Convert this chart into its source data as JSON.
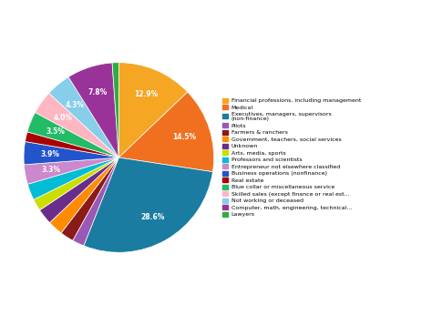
{
  "legend_labels": [
    "Financial professions, including management",
    "Medical",
    "Executives, managers, supervisors\n(non-finance)",
    "Pilots",
    "Farmers & ranchers",
    "Government, teachers, social services",
    "Unknown",
    "Arts, media, sports",
    "Professors and scientists",
    "Entrepreneur not elsewhere classified",
    "Business operations (nonfinance)",
    "Real estate",
    "Blue collar or miscellaneous service",
    "Skilled sales (except finance or real est...",
    "Not working or deceased",
    "Computer, math, engineering, technical...",
    "Lawyers"
  ],
  "values": [
    13.9,
    15.7,
    30.9,
    2.2,
    2.5,
    2.8,
    2.9,
    2.2,
    3.0,
    3.6,
    4.2,
    1.8,
    3.8,
    4.3,
    4.6,
    8.4,
    1.2
  ],
  "colors": [
    "#F5A623",
    "#F07020",
    "#1A7CA0",
    "#9B59B6",
    "#8B1A1A",
    "#FF8C00",
    "#6B2D8B",
    "#CCDD00",
    "#00BCD4",
    "#CC88CC",
    "#2255CC",
    "#AA0000",
    "#22BB66",
    "#FFB6C1",
    "#87CEEB",
    "#993399",
    "#33AA44"
  ],
  "startangle": 90,
  "counterclock": false
}
